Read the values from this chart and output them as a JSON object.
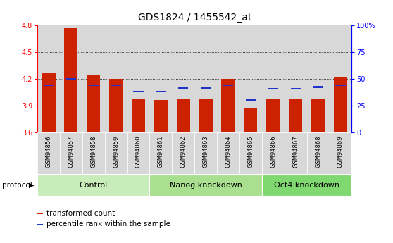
{
  "title": "GDS1824 / 1455542_at",
  "samples": [
    "GSM94856",
    "GSM94857",
    "GSM94858",
    "GSM94859",
    "GSM94860",
    "GSM94861",
    "GSM94862",
    "GSM94863",
    "GSM94864",
    "GSM94865",
    "GSM94866",
    "GSM94867",
    "GSM94868",
    "GSM94869"
  ],
  "red_values": [
    4.27,
    4.77,
    4.25,
    4.2,
    3.97,
    3.96,
    3.98,
    3.97,
    4.2,
    3.87,
    3.97,
    3.97,
    3.98,
    4.22
  ],
  "blue_values": [
    4.13,
    4.2,
    4.13,
    4.13,
    4.06,
    4.06,
    4.1,
    4.1,
    4.13,
    3.96,
    4.09,
    4.09,
    4.11,
    4.13
  ],
  "ymin": 3.6,
  "ymax": 4.8,
  "y2min": 0,
  "y2max": 100,
  "yticks_left": [
    3.6,
    3.9,
    4.2,
    4.5,
    4.8
  ],
  "yticks_right": [
    0,
    25,
    50,
    75,
    100
  ],
  "ytick_labels_right": [
    "0",
    "25",
    "50",
    "75",
    "100%"
  ],
  "groups": [
    {
      "label": "Control",
      "start": 0,
      "end": 5,
      "color": "#c8edba"
    },
    {
      "label": "Nanog knockdown",
      "start": 5,
      "end": 10,
      "color": "#a8e090"
    },
    {
      "label": "Oct4 knockdown",
      "start": 10,
      "end": 14,
      "color": "#80d870"
    }
  ],
  "bar_color_red": "#cc2200",
  "bar_color_blue": "#2233cc",
  "col_bg": "#d8d8d8",
  "protocol_label": "protocol",
  "legend_red": "transformed count",
  "legend_blue": "percentile rank within the sample",
  "title_fontsize": 10,
  "tick_fontsize": 7,
  "xtick_fontsize": 6,
  "group_fontsize": 8
}
